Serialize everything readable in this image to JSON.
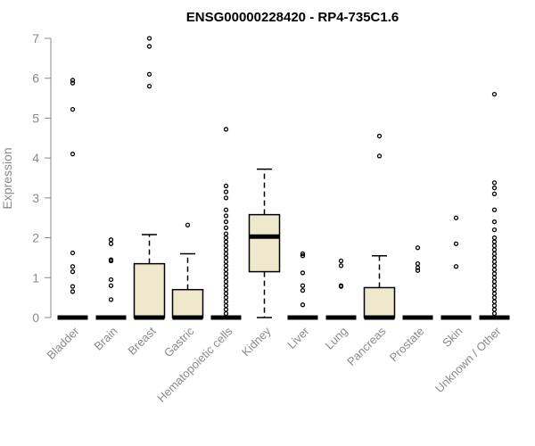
{
  "chart_data": {
    "type": "box",
    "title": "ENSG00000228420 - RP4-735C1.6",
    "ylabel": "Expression",
    "xlabel": "",
    "ylim": [
      0,
      7
    ],
    "yticks": [
      0,
      1,
      2,
      3,
      4,
      5,
      6,
      7
    ],
    "grid": false,
    "colors": {
      "box_fill": "#efe8cc",
      "box_stroke": "#000000",
      "axis": "#8a8a8a",
      "text": "#8a8a8a"
    },
    "categories": [
      "Bladder",
      "Brain",
      "Breast",
      "Gastric",
      "Hematopoietic cells",
      "Kidney",
      "Liver",
      "Lung",
      "Pancreas",
      "Prostate",
      "Skin",
      "Unknown / Other"
    ],
    "boxes": [
      {
        "category": "Bladder",
        "min": 0,
        "q1": 0,
        "median": 0,
        "q3": 0,
        "max": 0,
        "outliers": [
          0.65,
          0.78,
          1.15,
          1.28,
          1.62,
          4.1,
          5.22,
          5.88,
          5.95
        ]
      },
      {
        "category": "Brain",
        "min": 0,
        "q1": 0,
        "median": 0,
        "q3": 0,
        "max": 0,
        "outliers": [
          0.45,
          0.8,
          0.95,
          1.42,
          1.45,
          1.85,
          1.95
        ]
      },
      {
        "category": "Breast",
        "min": 0,
        "q1": 0,
        "median": 0,
        "q3": 1.35,
        "max": 2.08,
        "outliers": [
          5.8,
          6.1,
          6.8,
          7.0
        ]
      },
      {
        "category": "Gastric",
        "min": 0,
        "q1": 0,
        "median": 0,
        "q3": 0.7,
        "max": 1.6,
        "outliers": [
          2.32
        ]
      },
      {
        "category": "Hematopoietic cells",
        "min": 0,
        "q1": 0,
        "median": 0,
        "q3": 0,
        "max": 0,
        "outliers": [
          0.1,
          0.2,
          0.3,
          0.4,
          0.5,
          0.6,
          0.7,
          0.8,
          0.9,
          1.0,
          1.1,
          1.2,
          1.3,
          1.4,
          1.5,
          1.6,
          1.7,
          1.8,
          1.9,
          2.0,
          2.1,
          2.25,
          2.4,
          2.55,
          2.7,
          3.0,
          3.15,
          3.3,
          4.72
        ]
      },
      {
        "category": "Kidney",
        "min": 0,
        "q1": 1.15,
        "median": 2.03,
        "q3": 2.58,
        "max": 3.72,
        "outliers": []
      },
      {
        "category": "Liver",
        "min": 0,
        "q1": 0,
        "median": 0,
        "q3": 0,
        "max": 0,
        "outliers": [
          0.32,
          0.68,
          0.8,
          1.12,
          1.55,
          1.6
        ]
      },
      {
        "category": "Lung",
        "min": 0,
        "q1": 0,
        "median": 0,
        "q3": 0,
        "max": 0,
        "outliers": [
          0.78,
          0.8,
          1.3,
          1.42
        ]
      },
      {
        "category": "Pancreas",
        "min": 0,
        "q1": 0,
        "median": 0,
        "q3": 0.75,
        "max": 1.55,
        "outliers": [
          4.05,
          4.55
        ]
      },
      {
        "category": "Prostate",
        "min": 0,
        "q1": 0,
        "median": 0,
        "q3": 0,
        "max": 0,
        "outliers": [
          1.18,
          1.25,
          1.35,
          1.75
        ]
      },
      {
        "category": "Skin",
        "min": 0,
        "q1": 0,
        "median": 0,
        "q3": 0,
        "max": 0,
        "outliers": [
          1.28,
          1.85,
          2.5
        ]
      },
      {
        "category": "Unknown / Other",
        "min": 0,
        "q1": 0,
        "median": 0,
        "q3": 0,
        "max": 0,
        "outliers": [
          0.1,
          0.2,
          0.3,
          0.4,
          0.5,
          0.6,
          0.7,
          0.8,
          0.9,
          1.0,
          1.1,
          1.2,
          1.3,
          1.4,
          1.5,
          1.6,
          1.7,
          1.8,
          1.9,
          2.0,
          2.2,
          2.4,
          2.7,
          3.1,
          3.25,
          3.38,
          5.6
        ]
      }
    ]
  }
}
